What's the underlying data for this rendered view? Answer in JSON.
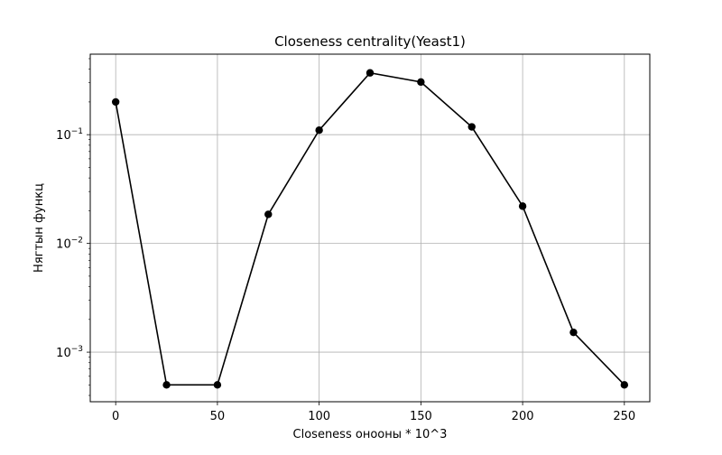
{
  "chart_data": {
    "type": "line",
    "title": "Closeness centrality(Yeast1)",
    "xlabel": "Closeness онооны * 10^3",
    "ylabel": "Нягтын функц",
    "x": [
      0,
      25,
      50,
      75,
      100,
      125,
      150,
      175,
      200,
      225,
      250
    ],
    "series": [
      {
        "values": [
          0.2,
          0.0005,
          0.0005,
          0.0185,
          0.11,
          0.37,
          0.305,
          0.118,
          0.022,
          0.00152,
          0.0005
        ],
        "color": "#000000",
        "marker": "circle"
      }
    ],
    "xlim": [
      -12.5,
      262.5
    ],
    "ylim": [
      0.00035,
      0.55
    ],
    "yscale": "log",
    "grid": true,
    "xticks": [
      0,
      50,
      100,
      150,
      200,
      250
    ],
    "xtick_labels": [
      "0",
      "50",
      "100",
      "150",
      "200",
      "250"
    ],
    "yticks_major": [
      0.001,
      0.01,
      0.1
    ],
    "ytick_labels": [
      {
        "base": "10",
        "exp": "−3"
      },
      {
        "base": "10",
        "exp": "−2"
      },
      {
        "base": "10",
        "exp": "−1"
      }
    ]
  }
}
